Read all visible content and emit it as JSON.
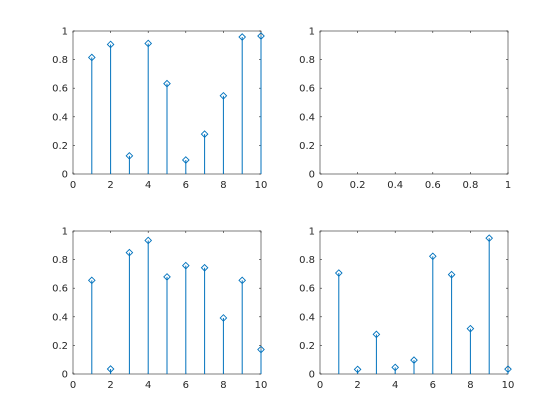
{
  "figure": {
    "background": "#ffffff"
  },
  "chart_data": [
    {
      "type": "stem",
      "position": "top-left",
      "marker": "diamond",
      "color": "#0072bd",
      "x": [
        1,
        2,
        3,
        4,
        5,
        6,
        7,
        8,
        9,
        10
      ],
      "y": [
        0.815,
        0.906,
        0.127,
        0.913,
        0.632,
        0.098,
        0.279,
        0.547,
        0.958,
        0.965
      ],
      "xlim": [
        0,
        10
      ],
      "ylim": [
        0,
        1
      ],
      "xticks": [
        0,
        2,
        4,
        6,
        8,
        10
      ],
      "yticks": [
        0,
        0.2,
        0.4,
        0.6,
        0.8,
        1
      ],
      "xtick_labels": [
        "0",
        "2",
        "4",
        "6",
        "8",
        "10"
      ],
      "ytick_labels": [
        "0",
        "0.2",
        "0.4",
        "0.6",
        "0.8",
        "1"
      ]
    },
    {
      "type": "empty",
      "position": "top-right",
      "x": [],
      "y": [],
      "xlim": [
        0,
        1
      ],
      "ylim": [
        0,
        1
      ],
      "xticks": [
        0,
        0.2,
        0.4,
        0.6,
        0.8,
        1
      ],
      "yticks": [
        0,
        0.2,
        0.4,
        0.6,
        0.8,
        1
      ],
      "xtick_labels": [
        "0",
        "0.2",
        "0.4",
        "0.6",
        "0.8",
        "1"
      ],
      "ytick_labels": [
        "0",
        "0.2",
        "0.4",
        "0.6",
        "0.8",
        "1"
      ]
    },
    {
      "type": "stem",
      "position": "bottom-left",
      "marker": "diamond",
      "color": "#0072bd",
      "x": [
        1,
        2,
        3,
        4,
        5,
        6,
        7,
        8,
        9,
        10
      ],
      "y": [
        0.655,
        0.035,
        0.849,
        0.934,
        0.679,
        0.758,
        0.743,
        0.392,
        0.655,
        0.171
      ],
      "xlim": [
        0,
        10
      ],
      "ylim": [
        0,
        1
      ],
      "xticks": [
        0,
        2,
        4,
        6,
        8,
        10
      ],
      "yticks": [
        0,
        0.2,
        0.4,
        0.6,
        0.8,
        1
      ],
      "xtick_labels": [
        "0",
        "2",
        "4",
        "6",
        "8",
        "10"
      ],
      "ytick_labels": [
        "0",
        "0.2",
        "0.4",
        "0.6",
        "0.8",
        "1"
      ]
    },
    {
      "type": "stem",
      "position": "bottom-right",
      "marker": "diamond",
      "color": "#0072bd",
      "x": [
        1,
        2,
        3,
        4,
        5,
        6,
        7,
        8,
        9,
        10
      ],
      "y": [
        0.706,
        0.032,
        0.277,
        0.046,
        0.097,
        0.823,
        0.695,
        0.317,
        0.95,
        0.034
      ],
      "xlim": [
        0,
        10
      ],
      "ylim": [
        0,
        1
      ],
      "xticks": [
        0,
        2,
        4,
        6,
        8,
        10
      ],
      "yticks": [
        0,
        0.2,
        0.4,
        0.6,
        0.8,
        1
      ],
      "xtick_labels": [
        "0",
        "2",
        "4",
        "6",
        "8",
        "10"
      ],
      "ytick_labels": [
        "0",
        "0.2",
        "0.4",
        "0.6",
        "0.8",
        "1"
      ]
    }
  ]
}
